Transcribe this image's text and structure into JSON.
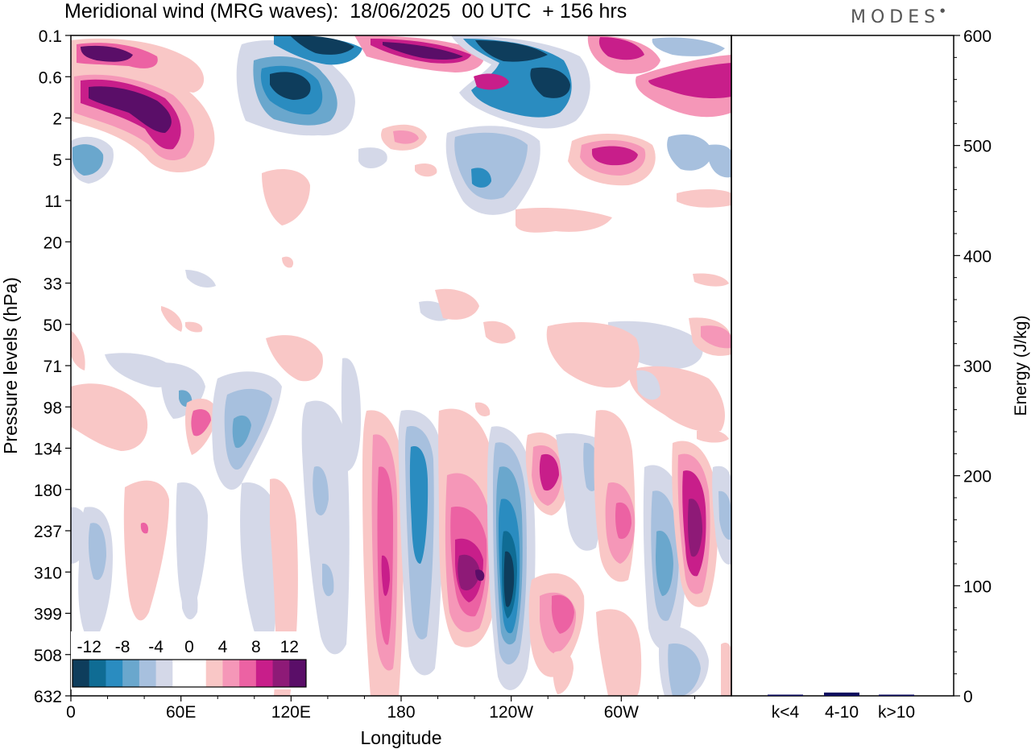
{
  "header": {
    "title": "Meridional wind (MRG waves):  18/06/2025  00 UTC  + 156 hrs",
    "brand": "MODES"
  },
  "chart_data": [
    {
      "type": "heatmap",
      "title": "Meridional wind (MRG waves):  18/06/2025  00 UTC  + 156 hrs",
      "xlabel": "Longitude",
      "ylabel": "Pressure levels (hPa)",
      "x_ticks": [
        "0",
        "60E",
        "120E",
        "180",
        "120W",
        "60W"
      ],
      "y_ticks": [
        "0.1",
        "0.6",
        "2",
        "5",
        "11",
        "20",
        "33",
        "50",
        "71",
        "98",
        "134",
        "180",
        "237",
        "310",
        "399",
        "508",
        "632"
      ],
      "colorbar": {
        "labels": [
          "-12",
          "-8",
          "-4",
          "0",
          "4",
          "8",
          "12"
        ],
        "colors": [
          "#0e3d5c",
          "#0f6c94",
          "#2a8cc0",
          "#6aa7cd",
          "#a7c0de",
          "#d4d8e8",
          "#ffffff",
          "#ffffff",
          "#f9c7c6",
          "#f597b8",
          "#ec62a3",
          "#c81e8a",
          "#8e1a77",
          "#5a0e68"
        ]
      }
    },
    {
      "type": "bar",
      "ylabel": "Energy (J/kg)",
      "ylim": [
        0,
        600
      ],
      "y_ticks": [
        "0",
        "100",
        "200",
        "300",
        "400",
        "500",
        "600"
      ],
      "categories": [
        "k<4",
        "4-10",
        "k>10"
      ],
      "values": [
        0.5,
        3,
        0.5
      ],
      "bar_color": "#0b0b5e"
    }
  ]
}
